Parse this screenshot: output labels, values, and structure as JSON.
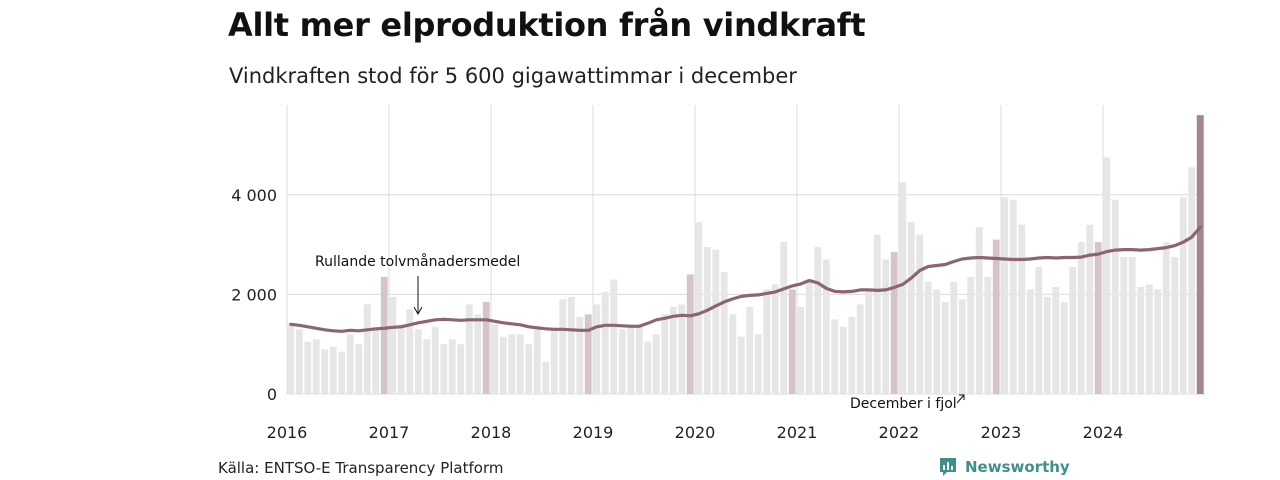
{
  "title": "Allt mer elproduktion från vindkraft",
  "subtitle": "Vindkraften stod för 5 600 gigawattimmar i december",
  "source": "Källa: ENTSO-E Transparency Platform",
  "brand": {
    "name": "Newsworthy",
    "icon": "newsworthy-logo-icon",
    "color": "#3f8f8a"
  },
  "chart_data": {
    "type": "bar",
    "unit": "GWh",
    "x_start": "2016-01",
    "x_end": "2024-12",
    "ylim": [
      0,
      5800
    ],
    "y_ticks": [
      0,
      2000,
      4000
    ],
    "y_tick_labels": [
      "0",
      "2 000",
      "4 000"
    ],
    "x_ticks": [
      "2016",
      "2017",
      "2018",
      "2019",
      "2020",
      "2021",
      "2022",
      "2023",
      "2024"
    ],
    "grid": true,
    "colors": {
      "bar": "#e6e6e6",
      "december": "#d6c4c9",
      "latest": "#a3868e",
      "line": "#8b6670",
      "grid": "#dcdcdc"
    },
    "series": [
      {
        "values": [
          1400,
          1300,
          1050,
          1100,
          900,
          950,
          850,
          1200,
          1000,
          1800,
          1300,
          2350,
          1950,
          1400,
          1700,
          1300,
          1100,
          1350,
          1000,
          1100,
          1000,
          1800,
          1600,
          1850,
          1400,
          1150,
          1200,
          1200,
          1000,
          1300,
          650,
          1300,
          1900,
          1950,
          1550,
          1600,
          1800,
          2050,
          2300,
          1300,
          1400,
          1400,
          1050,
          1200,
          1600,
          1750,
          1800,
          2400,
          3450,
          2950,
          2900,
          2450,
          1600,
          1150,
          1750,
          1200,
          2100,
          2200,
          3050,
          2100,
          1750,
          2300,
          2950,
          2700,
          1500,
          1350,
          1550,
          1800,
          2100,
          3200,
          2700,
          2850,
          4250,
          3450,
          3200,
          2250,
          2100,
          1850,
          2250,
          1900,
          2350,
          3350,
          2350,
          3100,
          3950,
          3900,
          3400,
          2100,
          2550,
          1950,
          2150,
          1850,
          2550,
          3050,
          3400,
          3050,
          4750,
          3900,
          2750,
          2750,
          2150,
          2200,
          2100,
          3050,
          2750,
          3950,
          4550,
          5600
        ]
      },
      {
        "name": "Rullande tolvmånadersmedel",
        "type": "line",
        "values": [
          1400,
          1380,
          1350,
          1320,
          1290,
          1270,
          1260,
          1280,
          1270,
          1290,
          1310,
          1320,
          1340,
          1350,
          1390,
          1430,
          1460,
          1490,
          1500,
          1490,
          1480,
          1490,
          1490,
          1490,
          1460,
          1430,
          1410,
          1390,
          1350,
          1330,
          1310,
          1300,
          1300,
          1290,
          1280,
          1280,
          1350,
          1380,
          1380,
          1370,
          1360,
          1360,
          1420,
          1490,
          1520,
          1560,
          1580,
          1570,
          1610,
          1680,
          1770,
          1850,
          1910,
          1960,
          1980,
          1990,
          2020,
          2050,
          2110,
          2170,
          2210,
          2280,
          2230,
          2120,
          2060,
          2050,
          2060,
          2090,
          2090,
          2080,
          2090,
          2140,
          2200,
          2330,
          2480,
          2560,
          2580,
          2600,
          2660,
          2710,
          2730,
          2740,
          2730,
          2720,
          2710,
          2700,
          2700,
          2710,
          2730,
          2740,
          2730,
          2740,
          2740,
          2750,
          2790,
          2810,
          2860,
          2890,
          2900,
          2900,
          2890,
          2900,
          2920,
          2940,
          2980,
          3050,
          3150,
          3350
        ]
      }
    ],
    "annotations": [
      {
        "text": "Rullande tolvmånadersmedel"
      },
      {
        "text": "December i fjol"
      }
    ]
  }
}
